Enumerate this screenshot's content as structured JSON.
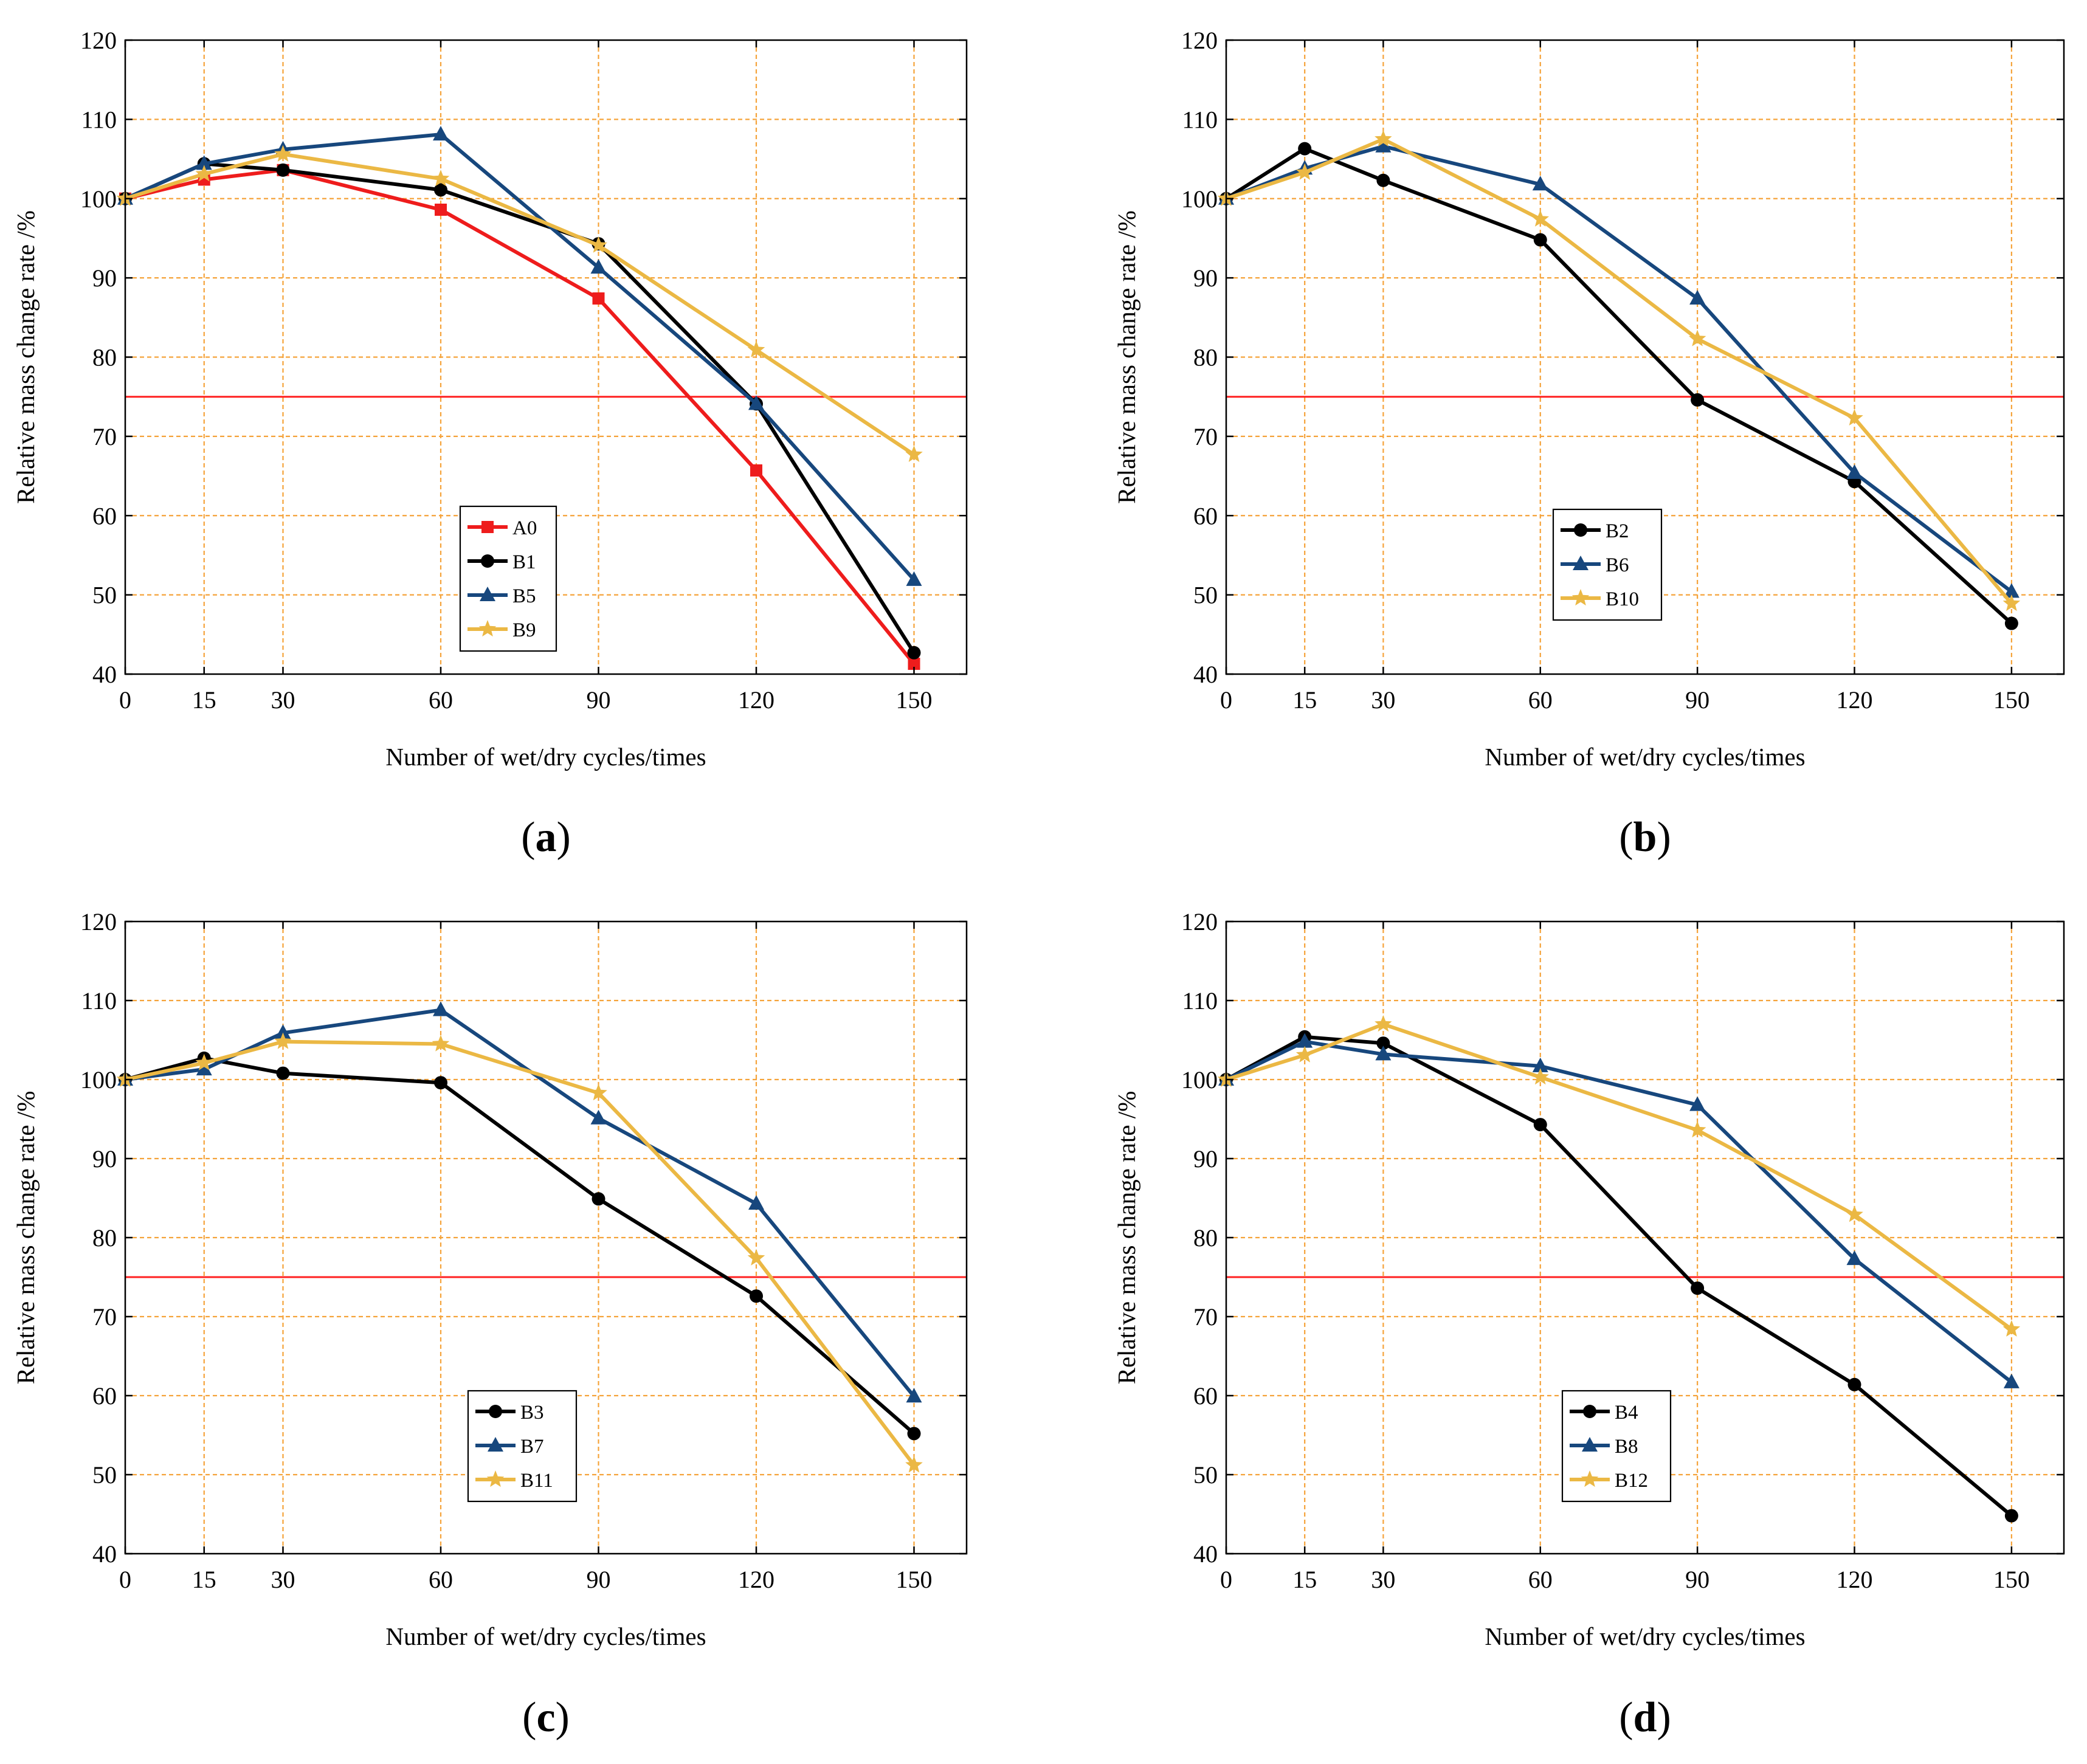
{
  "colors": {
    "A0": "#ee1c1c",
    "black": "#000000",
    "blue": "#17477d",
    "gold": "#ebb844",
    "grid": "#f5a33a",
    "threshold": "#ff2020"
  },
  "chart_data": [
    {
      "type": "line",
      "panel_label": "a",
      "xlabel": "Number of wet/dry cycles/times",
      "ylabel": "Relative mass change rate /%",
      "x": [
        0,
        15,
        30,
        60,
        90,
        120,
        150
      ],
      "xlim": [
        0,
        160
      ],
      "ylim": [
        40,
        120
      ],
      "xticks": [
        "0",
        "15",
        "30",
        "60",
        "90",
        "120",
        "150"
      ],
      "yticks": [
        "40",
        "50",
        "60",
        "70",
        "80",
        "90",
        "100",
        "110",
        "120"
      ],
      "grid": true,
      "reference_line": 75,
      "legend_position": "bottom-center",
      "series": [
        {
          "name": "A0",
          "color": "#ee1c1c",
          "marker": "square",
          "values": [
            100,
            102.4,
            103.6,
            98.6,
            87.4,
            65.7,
            41.3
          ]
        },
        {
          "name": "B1",
          "color": "#000000",
          "marker": "circle",
          "values": [
            100,
            104.4,
            103.6,
            101.1,
            94.3,
            74.1,
            42.7
          ]
        },
        {
          "name": "B5",
          "color": "#17477d",
          "marker": "triangle",
          "values": [
            100,
            104.4,
            106.2,
            108.1,
            91.3,
            74.1,
            51.9
          ]
        },
        {
          "name": "B9",
          "color": "#ebb844",
          "marker": "star",
          "values": [
            100,
            103.1,
            105.6,
            102.5,
            94.1,
            80.9,
            67.7
          ]
        }
      ]
    },
    {
      "type": "line",
      "panel_label": "b",
      "xlabel": "Number of wet/dry cycles/times",
      "ylabel": "Relative mass change rate /%",
      "x": [
        0,
        15,
        30,
        60,
        90,
        120,
        150
      ],
      "xlim": [
        0,
        160
      ],
      "ylim": [
        40,
        120
      ],
      "xticks": [
        "0",
        "15",
        "30",
        "60",
        "90",
        "120",
        "150"
      ],
      "yticks": [
        "40",
        "50",
        "60",
        "70",
        "80",
        "90",
        "100",
        "110",
        "120"
      ],
      "grid": true,
      "reference_line": 75,
      "legend_position": "bottom-center",
      "series": [
        {
          "name": "B2",
          "color": "#000000",
          "marker": "circle",
          "values": [
            100,
            106.3,
            102.3,
            94.8,
            74.6,
            64.3,
            46.4
          ]
        },
        {
          "name": "B6",
          "color": "#17477d",
          "marker": "triangle",
          "values": [
            100,
            103.8,
            106.6,
            101.8,
            87.4,
            65.4,
            50.4
          ]
        },
        {
          "name": "B10",
          "color": "#ebb844",
          "marker": "star",
          "values": [
            100,
            103.3,
            107.5,
            97.4,
            82.3,
            72.3,
            48.9
          ]
        }
      ]
    },
    {
      "type": "line",
      "panel_label": "c",
      "xlabel": "Number of wet/dry cycles/times",
      "ylabel": "Relative mass change rate /%",
      "x": [
        0,
        15,
        30,
        60,
        90,
        120,
        150
      ],
      "xlim": [
        0,
        160
      ],
      "ylim": [
        40,
        120
      ],
      "xticks": [
        "0",
        "15",
        "30",
        "60",
        "90",
        "120",
        "150"
      ],
      "yticks": [
        "40",
        "50",
        "60",
        "70",
        "80",
        "90",
        "100",
        "110",
        "120"
      ],
      "grid": true,
      "reference_line": 75,
      "legend_position": "bottom-center",
      "series": [
        {
          "name": "B3",
          "color": "#000000",
          "marker": "circle",
          "values": [
            100,
            102.7,
            100.8,
            99.6,
            84.9,
            72.6,
            55.2
          ]
        },
        {
          "name": "B7",
          "color": "#17477d",
          "marker": "triangle",
          "values": [
            100,
            101.3,
            105.9,
            108.8,
            95.1,
            84.3,
            59.9
          ]
        },
        {
          "name": "B11",
          "color": "#ebb844",
          "marker": "star",
          "values": [
            100,
            102.1,
            104.8,
            104.5,
            98.3,
            77.4,
            51.2
          ]
        }
      ]
    },
    {
      "type": "line",
      "panel_label": "d",
      "xlabel": "Number of wet/dry cycles/times",
      "ylabel": "Relative mass change rate /%",
      "x": [
        0,
        15,
        30,
        60,
        90,
        120,
        150
      ],
      "xlim": [
        0,
        160
      ],
      "ylim": [
        40,
        120
      ],
      "xticks": [
        "0",
        "15",
        "30",
        "60",
        "90",
        "120",
        "150"
      ],
      "yticks": [
        "40",
        "50",
        "60",
        "70",
        "80",
        "90",
        "100",
        "110",
        "120"
      ],
      "grid": true,
      "reference_line": 75,
      "legend_position": "bottom-center",
      "series": [
        {
          "name": "B4",
          "color": "#000000",
          "marker": "circle",
          "values": [
            100,
            105.4,
            104.6,
            94.3,
            73.6,
            61.4,
            44.8
          ]
        },
        {
          "name": "B8",
          "color": "#17477d",
          "marker": "triangle",
          "values": [
            100,
            104.8,
            103.2,
            101.7,
            96.8,
            77.3,
            61.7
          ]
        },
        {
          "name": "B12",
          "color": "#ebb844",
          "marker": "star",
          "values": [
            100,
            103.1,
            107.0,
            100.3,
            93.6,
            82.9,
            68.4
          ]
        }
      ]
    }
  ]
}
